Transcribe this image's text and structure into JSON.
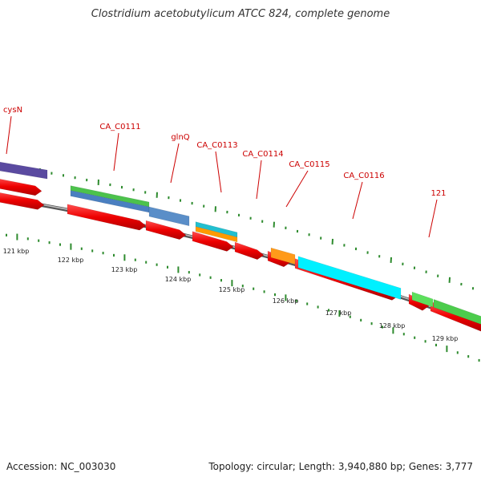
{
  "title": "Clostridium acetobutylicum ATCC 824, complete genome",
  "footer": {
    "accession": "Accession: NC_003030",
    "topology": "Topology: circular; Length: 3,940,880 bp; Genes: 3,777"
  },
  "colors": {
    "cds": "#ff0000",
    "label": "#cc0000",
    "tick": "#2e8b2e",
    "backbone": "#888888"
  },
  "gene_labels": [
    "cysN",
    "CA_C0111",
    "glnQ",
    "CA_C0113",
    "CA_C0114",
    "CA_C0115",
    "CA_C0116",
    "121"
  ],
  "kbp_labels": [
    "121 kbp",
    "122 kbp",
    "123 kbp",
    "124 kbp",
    "125 kbp",
    "126 kbp",
    "127 kbp",
    "128 kbp",
    "129 kbp"
  ]
}
